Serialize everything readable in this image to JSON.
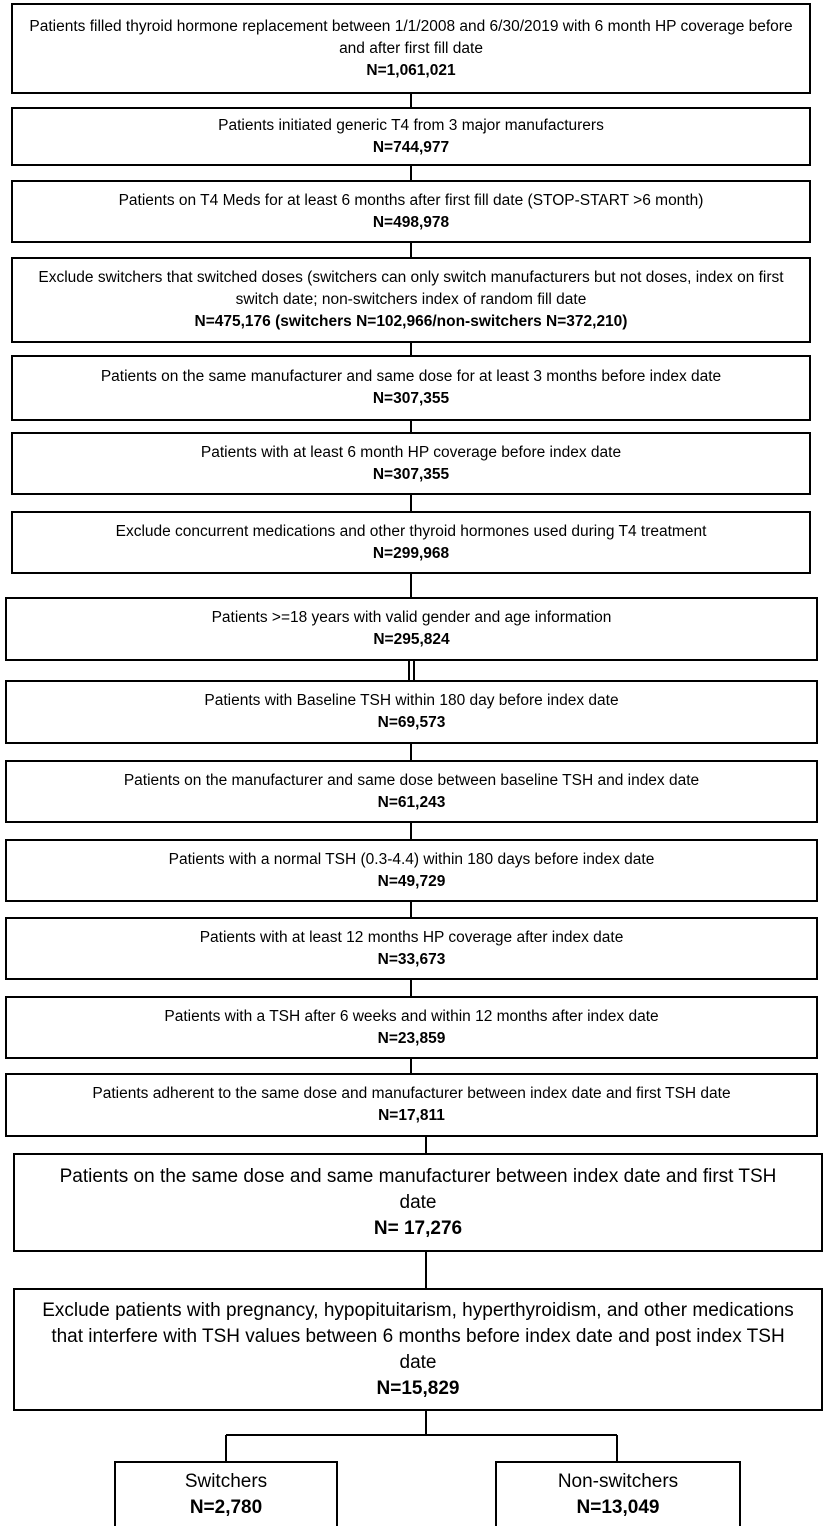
{
  "steps": [
    {
      "text": "Patients filled thyroid hormone replacement between 1/1/2008 and 6/30/2019 with 6 month HP coverage before and after first fill date",
      "n": "N=1,061,021"
    },
    {
      "text": "Patients initiated generic T4 from 3 major manufacturers",
      "n": "N=744,977"
    },
    {
      "text": "Patients on T4 Meds for at least 6 months after first fill date (STOP-START >6 month)",
      "n": "N=498,978"
    },
    {
      "text": "Exclude switchers that switched doses (switchers can only switch manufacturers but not doses, index on first switch date; non-switchers index of random fill date",
      "n": "N=475,176 (switchers N=102,966/non-switchers N=372,210)"
    },
    {
      "text": "Patients on the same manufacturer and same dose for at least 3 months before index date",
      "n": "N=307,355"
    },
    {
      "text": "Patients with at least 6 month HP coverage before index date",
      "n": "N=307,355"
    },
    {
      "text": "Exclude concurrent medications and other thyroid hormones used during T4 treatment",
      "n": "N=299,968"
    },
    {
      "text": "Patients >=18 years with valid gender and age information",
      "n": "N=295,824"
    },
    {
      "text": "Patients with Baseline TSH within 180 day before index date",
      "n": "N=69,573"
    },
    {
      "text": "Patients on the manufacturer and same dose between baseline TSH and index date",
      "n": "N=61,243"
    },
    {
      "text": "Patients with a normal TSH (0.3-4.4) within 180 days before index date",
      "n": "N=49,729"
    },
    {
      "text": "Patients with at least 12 months HP coverage after index date",
      "n": "N=33,673"
    },
    {
      "text": "Patients with a TSH after 6 weeks and within 12 months after index date",
      "n": "N=23,859"
    },
    {
      "text": "Patients adherent to the same dose and manufacturer between index date and first TSH date",
      "n": "N=17,811"
    },
    {
      "text": "Patients on the same dose and same manufacturer between index date and first TSH date",
      "n": "N= 17,276"
    },
    {
      "text": "Exclude patients with pregnancy, hypopituitarism, hyperthyroidism, and other medications that interfere with TSH values between 6 months before index date and post index TSH date",
      "n": "N=15,829"
    }
  ],
  "groups": [
    {
      "label": "Switchers",
      "n": "N=2,780"
    },
    {
      "label": "Non-switchers",
      "n": "N=13,049"
    }
  ]
}
